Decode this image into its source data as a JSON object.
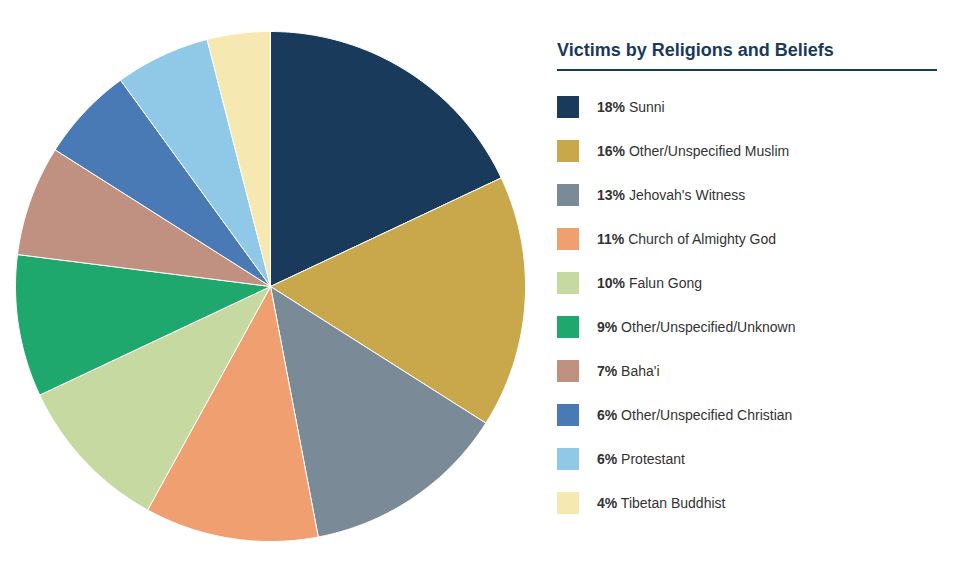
{
  "chart_data": {
    "type": "pie",
    "title": "Victims by Religions and Beliefs",
    "categories": [
      "18% Sunni",
      "16% Other/Unspecified Muslim",
      "13% Jehovah's Witness",
      "11% Church of Almighty God",
      "10% Falun Gong",
      "9% Other/Unspecified/Unknown",
      "7% Baha'i",
      "6% Other/Unspecified Christian",
      "6% Protestant",
      "4% Tibetan Buddhist"
    ],
    "values": [
      18,
      16,
      13,
      11,
      10,
      9,
      7,
      6,
      6,
      4
    ],
    "colors": [
      "#1a3a5c",
      "#c9a84c",
      "#7a8a96",
      "#f0a070",
      "#c5d9a0",
      "#1fa86e",
      "#c09080",
      "#4a7ab5",
      "#90c8e8",
      "#f5e8b0"
    ],
    "legend": "right"
  }
}
